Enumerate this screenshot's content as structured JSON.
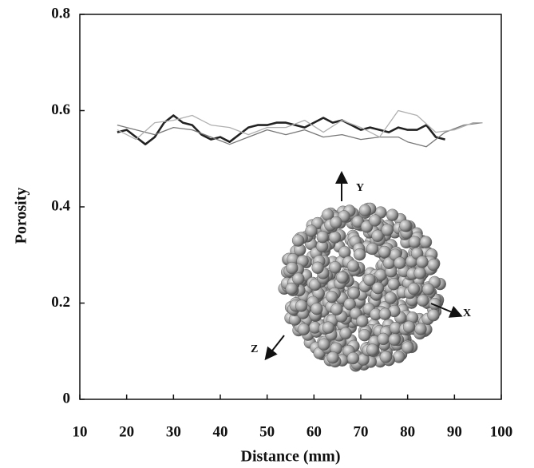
{
  "chart_data": {
    "type": "line",
    "x_label": "Distance (mm)",
    "y_label": "Porosity",
    "xlim": [
      10,
      100
    ],
    "xticks": [
      10,
      20,
      30,
      40,
      50,
      60,
      70,
      80,
      90,
      100
    ],
    "ylim": [
      0,
      0.8
    ],
    "yticks": [
      0,
      0.2,
      0.4,
      0.6,
      0.8
    ],
    "series": [
      {
        "color": "#222222",
        "x": [
          18,
          20,
          22,
          24,
          26,
          28,
          30,
          32,
          34,
          36,
          38,
          40,
          42,
          44,
          46,
          48,
          50,
          52,
          54,
          56,
          58,
          60,
          62,
          64,
          66,
          68,
          70,
          72,
          74,
          76,
          78,
          80,
          82,
          84,
          86,
          88
        ],
        "values": [
          0.555,
          0.56,
          0.545,
          0.53,
          0.545,
          0.575,
          0.59,
          0.575,
          0.57,
          0.55,
          0.54,
          0.545,
          0.535,
          0.55,
          0.565,
          0.57,
          0.57,
          0.575,
          0.575,
          0.57,
          0.565,
          0.575,
          0.585,
          0.575,
          0.58,
          0.57,
          0.56,
          0.565,
          0.56,
          0.555,
          0.565,
          0.56,
          0.56,
          0.57,
          0.545,
          0.54
        ]
      },
      {
        "color": "#777777",
        "x": [
          18,
          22,
          26,
          30,
          34,
          38,
          42,
          46,
          50,
          54,
          58,
          62,
          66,
          70,
          74,
          78,
          80,
          84,
          88,
          92,
          96
        ],
        "values": [
          0.57,
          0.56,
          0.55,
          0.565,
          0.56,
          0.545,
          0.53,
          0.545,
          0.56,
          0.55,
          0.56,
          0.545,
          0.55,
          0.54,
          0.545,
          0.545,
          0.535,
          0.525,
          0.555,
          0.57,
          0.575
        ]
      },
      {
        "color": "#b0b0b0",
        "x": [
          18,
          22,
          26,
          30,
          34,
          38,
          42,
          46,
          50,
          54,
          58,
          62,
          66,
          70,
          74,
          78,
          82,
          86,
          90,
          94,
          96
        ],
        "values": [
          0.56,
          0.54,
          0.575,
          0.58,
          0.59,
          0.57,
          0.565,
          0.55,
          0.565,
          0.565,
          0.58,
          0.555,
          0.58,
          0.565,
          0.545,
          0.6,
          0.59,
          0.555,
          0.56,
          0.575,
          0.575
        ]
      }
    ],
    "inset_axis_labels": [
      "Y",
      "X",
      "Z"
    ]
  }
}
